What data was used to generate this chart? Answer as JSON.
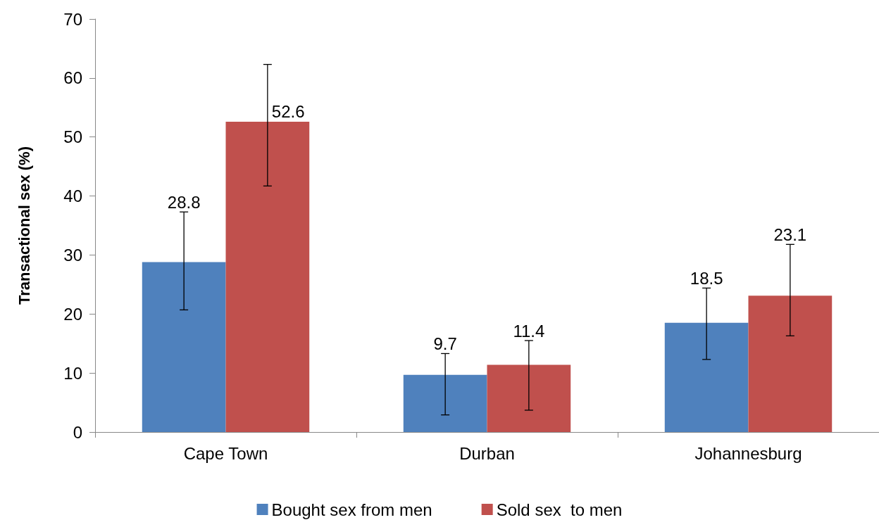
{
  "chart_data": {
    "type": "bar",
    "ylabel": "Transactional sex (%)",
    "categories": [
      "Cape Town",
      "Durban",
      "Johannesburg"
    ],
    "series": [
      {
        "name": "Bought sex from men",
        "color": "#4f81bd",
        "values": [
          28.8,
          9.7,
          18.5
        ],
        "errors": [
          [
            20.7,
            37.3
          ],
          [
            2.9,
            13.3
          ],
          [
            12.3,
            24.4
          ]
        ]
      },
      {
        "name": "Sold sex  to men",
        "color": "#c0504d",
        "values": [
          52.6,
          11.4,
          23.1
        ],
        "errors": [
          [
            41.7,
            62.3
          ],
          [
            3.7,
            15.5
          ],
          [
            16.3,
            31.8
          ]
        ]
      }
    ],
    "ylim": [
      0,
      70
    ],
    "yticks": [
      0,
      10,
      20,
      30,
      40,
      50,
      60,
      70
    ],
    "data_labels": true,
    "grid": false,
    "legend": "bottom"
  }
}
